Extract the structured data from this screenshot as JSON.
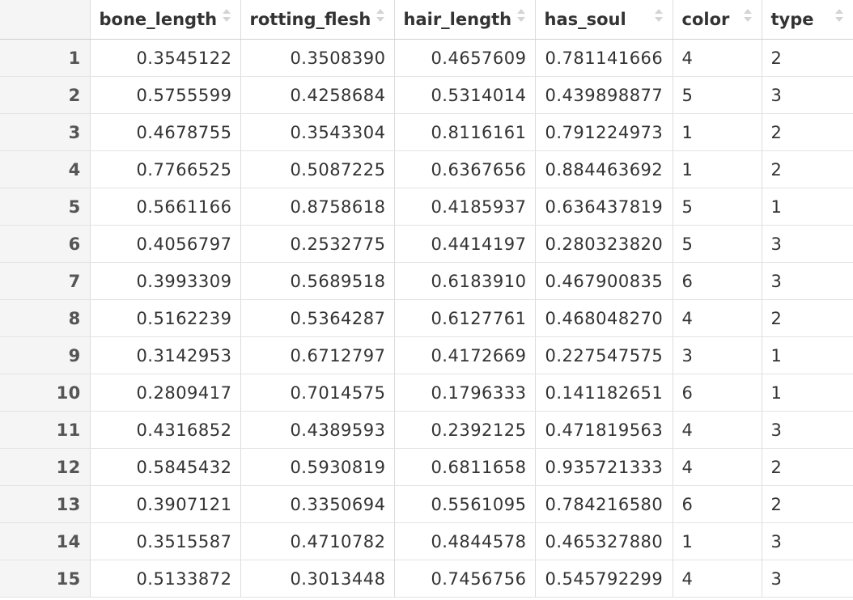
{
  "columns": [
    {
      "key": "bone_length",
      "label": "bone_length"
    },
    {
      "key": "rotting_flesh",
      "label": "rotting_flesh"
    },
    {
      "key": "hair_length",
      "label": "hair_length"
    },
    {
      "key": "has_soul",
      "label": "has_soul"
    },
    {
      "key": "color",
      "label": "color"
    },
    {
      "key": "type",
      "label": "type"
    }
  ],
  "rows": [
    {
      "index": "1",
      "bone_length": "0.3545122",
      "rotting_flesh": "0.3508390",
      "hair_length": "0.4657609",
      "has_soul": "0.781141666",
      "color": "4",
      "type": "2"
    },
    {
      "index": "2",
      "bone_length": "0.5755599",
      "rotting_flesh": "0.4258684",
      "hair_length": "0.5314014",
      "has_soul": "0.439898877",
      "color": "5",
      "type": "3"
    },
    {
      "index": "3",
      "bone_length": "0.4678755",
      "rotting_flesh": "0.3543304",
      "hair_length": "0.8116161",
      "has_soul": "0.791224973",
      "color": "1",
      "type": "2"
    },
    {
      "index": "4",
      "bone_length": "0.7766525",
      "rotting_flesh": "0.5087225",
      "hair_length": "0.6367656",
      "has_soul": "0.884463692",
      "color": "1",
      "type": "2"
    },
    {
      "index": "5",
      "bone_length": "0.5661166",
      "rotting_flesh": "0.8758618",
      "hair_length": "0.4185937",
      "has_soul": "0.636437819",
      "color": "5",
      "type": "1"
    },
    {
      "index": "6",
      "bone_length": "0.4056797",
      "rotting_flesh": "0.2532775",
      "hair_length": "0.4414197",
      "has_soul": "0.280323820",
      "color": "5",
      "type": "3"
    },
    {
      "index": "7",
      "bone_length": "0.3993309",
      "rotting_flesh": "0.5689518",
      "hair_length": "0.6183910",
      "has_soul": "0.467900835",
      "color": "6",
      "type": "3"
    },
    {
      "index": "8",
      "bone_length": "0.5162239",
      "rotting_flesh": "0.5364287",
      "hair_length": "0.6127761",
      "has_soul": "0.468048270",
      "color": "4",
      "type": "2"
    },
    {
      "index": "9",
      "bone_length": "0.3142953",
      "rotting_flesh": "0.6712797",
      "hair_length": "0.4172669",
      "has_soul": "0.227547575",
      "color": "3",
      "type": "1"
    },
    {
      "index": "10",
      "bone_length": "0.2809417",
      "rotting_flesh": "0.7014575",
      "hair_length": "0.1796333",
      "has_soul": "0.141182651",
      "color": "6",
      "type": "1"
    },
    {
      "index": "11",
      "bone_length": "0.4316852",
      "rotting_flesh": "0.4389593",
      "hair_length": "0.2392125",
      "has_soul": "0.471819563",
      "color": "4",
      "type": "3"
    },
    {
      "index": "12",
      "bone_length": "0.5845432",
      "rotting_flesh": "0.5930819",
      "hair_length": "0.6811658",
      "has_soul": "0.935721333",
      "color": "4",
      "type": "2"
    },
    {
      "index": "13",
      "bone_length": "0.3907121",
      "rotting_flesh": "0.3350694",
      "hair_length": "0.5561095",
      "has_soul": "0.784216580",
      "color": "6",
      "type": "2"
    },
    {
      "index": "14",
      "bone_length": "0.3515587",
      "rotting_flesh": "0.4710782",
      "hair_length": "0.4844578",
      "has_soul": "0.465327880",
      "color": "1",
      "type": "3"
    },
    {
      "index": "15",
      "bone_length": "0.5133872",
      "rotting_flesh": "0.3013448",
      "hair_length": "0.7456756",
      "has_soul": "0.545792299",
      "color": "4",
      "type": "3"
    }
  ],
  "icons": {
    "sort": "sort-arrows-icon"
  }
}
